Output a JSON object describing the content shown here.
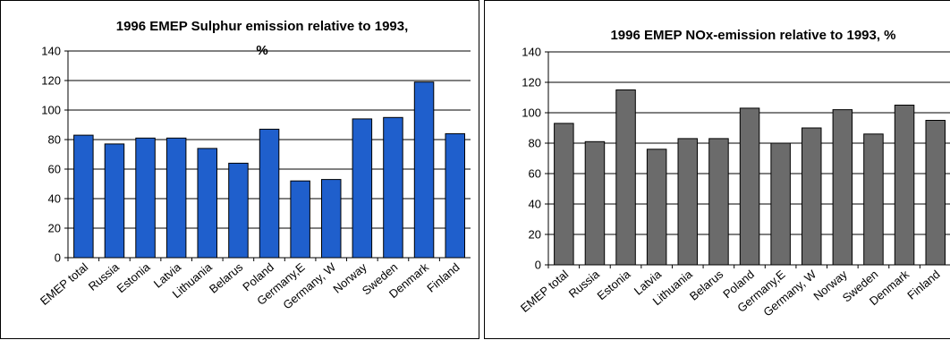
{
  "chart_data": [
    {
      "type": "bar",
      "title": "1996 EMEP Sulphur emission relative to 1993,",
      "title_line2": "%",
      "xlabel": "",
      "ylabel": "",
      "ylim": [
        0,
        140
      ],
      "yticks": [
        0,
        20,
        40,
        60,
        80,
        100,
        120,
        140
      ],
      "grid": true,
      "legend": "none",
      "bar_color": "#1f5fcc",
      "categories": [
        "EMEP total",
        "Russia",
        "Estonia",
        "Latvia",
        "Lithuania",
        "Belarus",
        "Poland",
        "Germany,E",
        "Germany, W",
        "Norway",
        "Sweden",
        "Denmark",
        "Finland"
      ],
      "values": [
        83,
        77,
        81,
        81,
        74,
        64,
        87,
        52,
        53,
        94,
        95,
        119,
        84
      ]
    },
    {
      "type": "bar",
      "title": "1996 EMEP NOx-emission relative to 1993, %",
      "title_line2": "",
      "xlabel": "",
      "ylabel": "",
      "ylim": [
        0,
        140
      ],
      "yticks": [
        0,
        20,
        40,
        60,
        80,
        100,
        120,
        140
      ],
      "grid": true,
      "legend": "none",
      "bar_color": "#6b6b6b",
      "categories": [
        "EMEP total",
        "Russia",
        "Estonia",
        "Latvia",
        "Lithuania",
        "Belarus",
        "Poland",
        "Germany,E",
        "Germany, W",
        "Norway",
        "Sweden",
        "Denmark",
        "Finland"
      ],
      "values": [
        93,
        81,
        115,
        76,
        83,
        83,
        103,
        80,
        90,
        102,
        86,
        105,
        95
      ]
    }
  ]
}
